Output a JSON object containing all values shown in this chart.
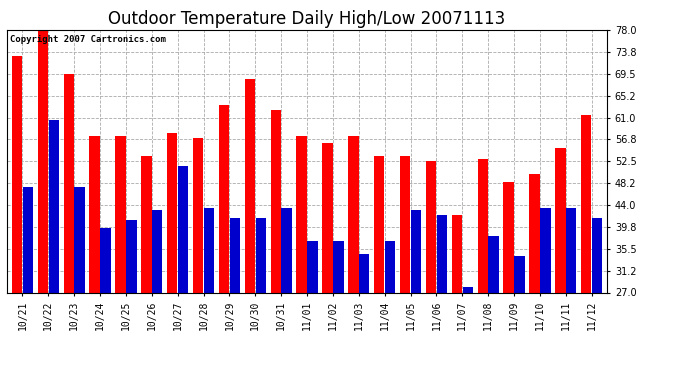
{
  "title": "Outdoor Temperature Daily High/Low 20071113",
  "copyright": "Copyright 2007 Cartronics.com",
  "dates": [
    "10/21",
    "10/22",
    "10/23",
    "10/24",
    "10/25",
    "10/26",
    "10/27",
    "10/28",
    "10/29",
    "10/30",
    "10/31",
    "11/01",
    "11/02",
    "11/03",
    "11/04",
    "11/05",
    "11/06",
    "11/07",
    "11/08",
    "11/09",
    "11/10",
    "11/11",
    "11/12"
  ],
  "highs": [
    73.0,
    78.0,
    69.5,
    57.5,
    57.5,
    53.5,
    58.0,
    57.0,
    63.5,
    68.5,
    62.5,
    57.5,
    56.0,
    57.5,
    53.5,
    53.5,
    52.5,
    42.0,
    53.0,
    48.5,
    50.0,
    55.0,
    61.5
  ],
  "lows": [
    47.5,
    60.5,
    47.5,
    39.5,
    41.0,
    43.0,
    51.5,
    43.5,
    41.5,
    41.5,
    43.5,
    37.0,
    37.0,
    34.5,
    37.0,
    43.0,
    42.0,
    28.0,
    38.0,
    34.0,
    43.5,
    43.5,
    41.5
  ],
  "high_color": "#ff0000",
  "low_color": "#0000cc",
  "bg_color": "#ffffff",
  "plot_bg_color": "#ffffff",
  "grid_color": "#aaaaaa",
  "ymin": 27.0,
  "ymax": 78.0,
  "yticks": [
    27.0,
    31.2,
    35.5,
    39.8,
    44.0,
    48.2,
    52.5,
    56.8,
    61.0,
    65.2,
    69.5,
    73.8,
    78.0
  ],
  "title_fontsize": 12,
  "tick_fontsize": 7,
  "copyright_fontsize": 6.5
}
